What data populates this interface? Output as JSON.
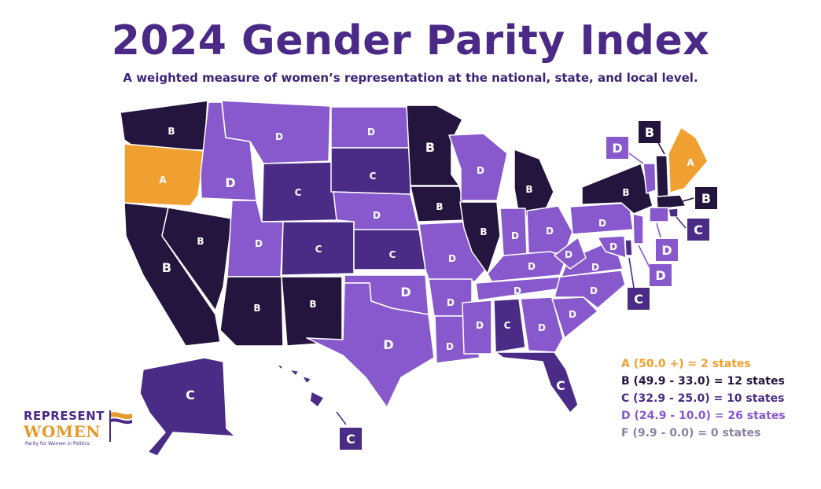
{
  "title": "2024 Gender Parity Index",
  "subtitle": "A weighted measure of women’s representation at the national, state, and local level.",
  "colors": {
    "A": "#f0a030",
    "B": "#24153f",
    "C": "#4a2c86",
    "D": "#8759cc",
    "border": "#ffffff",
    "legend_F": "#8a82a0",
    "legend_D": "#8759cc"
  },
  "legend": [
    {
      "grade": "A",
      "text": "A (50.0 +) = 2 states"
    },
    {
      "grade": "B",
      "text": "B (49.9 - 33.0) = 12 states"
    },
    {
      "grade": "C",
      "text": "C (32.9 - 25.0) = 10 states"
    },
    {
      "grade": "D",
      "text": "D (24.9 - 10.0) = 26 states"
    },
    {
      "grade": "F",
      "text": "F (9.9 - 0.0) = 0 states"
    }
  ],
  "states": [
    {
      "state": "Washington",
      "grade": "B"
    },
    {
      "state": "Oregon",
      "grade": "A"
    },
    {
      "state": "California",
      "grade": "B"
    },
    {
      "state": "Nevada",
      "grade": "B"
    },
    {
      "state": "Idaho",
      "grade": "D"
    },
    {
      "state": "Montana",
      "grade": "D"
    },
    {
      "state": "Wyoming",
      "grade": "C"
    },
    {
      "state": "Utah",
      "grade": "D"
    },
    {
      "state": "Arizona",
      "grade": "B"
    },
    {
      "state": "Colorado",
      "grade": "C"
    },
    {
      "state": "New Mexico",
      "grade": "B"
    },
    {
      "state": "North Dakota",
      "grade": "D"
    },
    {
      "state": "South Dakota",
      "grade": "C"
    },
    {
      "state": "Nebraska",
      "grade": "D"
    },
    {
      "state": "Kansas",
      "grade": "C"
    },
    {
      "state": "Oklahoma",
      "grade": "D"
    },
    {
      "state": "Texas",
      "grade": "D"
    },
    {
      "state": "Minnesota",
      "grade": "B"
    },
    {
      "state": "Iowa",
      "grade": "B"
    },
    {
      "state": "Missouri",
      "grade": "D"
    },
    {
      "state": "Arkansas",
      "grade": "D"
    },
    {
      "state": "Louisiana",
      "grade": "D"
    },
    {
      "state": "Wisconsin",
      "grade": "D"
    },
    {
      "state": "Illinois",
      "grade": "B"
    },
    {
      "state": "Michigan",
      "grade": "B"
    },
    {
      "state": "Indiana",
      "grade": "D"
    },
    {
      "state": "Ohio",
      "grade": "D"
    },
    {
      "state": "Kentucky",
      "grade": "D"
    },
    {
      "state": "Tennessee",
      "grade": "D"
    },
    {
      "state": "Mississippi",
      "grade": "D"
    },
    {
      "state": "Alabama",
      "grade": "C"
    },
    {
      "state": "Georgia",
      "grade": "D"
    },
    {
      "state": "Florida",
      "grade": "C"
    },
    {
      "state": "South Carolina",
      "grade": "D"
    },
    {
      "state": "North Carolina",
      "grade": "D"
    },
    {
      "state": "Virginia",
      "grade": "D"
    },
    {
      "state": "West Virginia",
      "grade": "D"
    },
    {
      "state": "Pennsylvania",
      "grade": "D"
    },
    {
      "state": "New York",
      "grade": "B"
    },
    {
      "state": "Vermont",
      "grade": "D"
    },
    {
      "state": "New Hampshire",
      "grade": "B"
    },
    {
      "state": "Maine",
      "grade": "A"
    },
    {
      "state": "Massachusetts",
      "grade": "B"
    },
    {
      "state": "Rhode Island",
      "grade": "C"
    },
    {
      "state": "Connecticut",
      "grade": "D"
    },
    {
      "state": "New Jersey",
      "grade": "D"
    },
    {
      "state": "Delaware",
      "grade": "C"
    },
    {
      "state": "Maryland",
      "grade": "D"
    },
    {
      "state": "Alaska",
      "grade": "C"
    },
    {
      "state": "Hawaii",
      "grade": "C"
    }
  ],
  "logo": {
    "line1": "REPRESENT",
    "line2": "WOMEN",
    "tagline": "Parity for Women in Politics"
  }
}
